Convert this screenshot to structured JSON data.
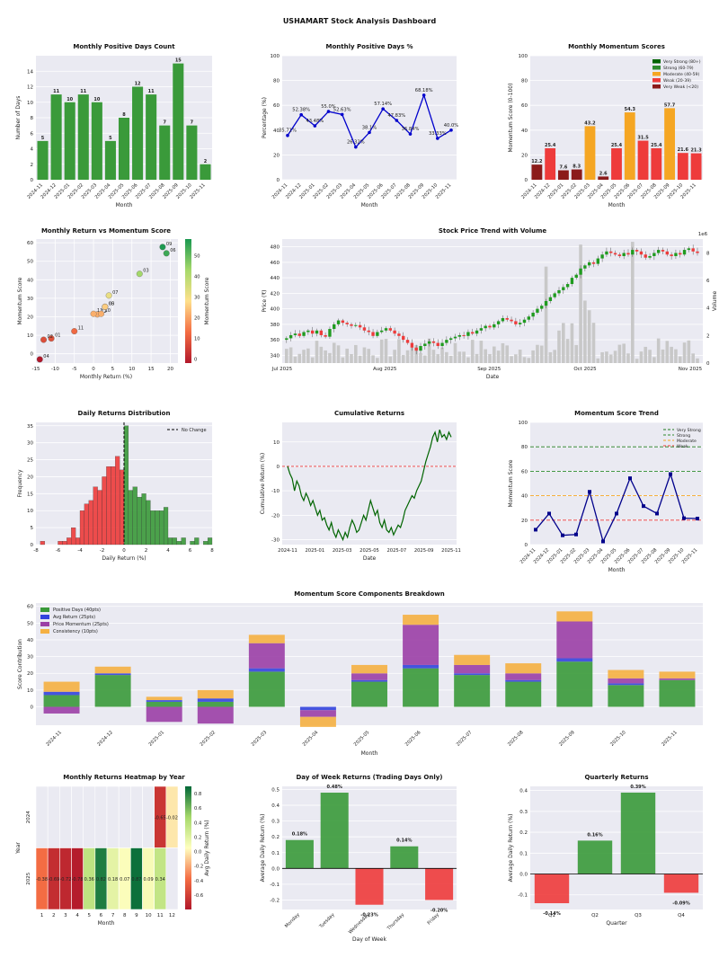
{
  "dashboard_title": "USHAMART Stock Analysis Dashboard",
  "colors": {
    "green": "#3a9a3a",
    "red": "#ee3b3b",
    "orange": "#f5a623",
    "darkred": "#8b1a1a",
    "navy": "#00008b",
    "blue": "#0000cc",
    "purple": "#9b3fa6",
    "consistency": "#f5b041",
    "avgret": "#3344dd",
    "panel": "#eaeaf2"
  },
  "chart_data": [
    {
      "id": "positive_days",
      "type": "bar",
      "title": "Monthly Positive Days Count",
      "xlabel": "Month",
      "ylabel": "Number of Days",
      "ylim": [
        0,
        16
      ],
      "yticks": [
        0,
        2,
        4,
        6,
        8,
        10,
        12,
        14
      ],
      "categories": [
        "2024-11",
        "2024-12",
        "2025-01",
        "2025-02",
        "2025-03",
        "2025-04",
        "2025-05",
        "2025-06",
        "2025-07",
        "2025-08",
        "2025-09",
        "2025-10",
        "2025-11"
      ],
      "values": [
        5,
        11,
        10,
        11,
        10,
        5,
        8,
        12,
        11,
        7,
        15,
        7,
        2
      ],
      "data_labels": [
        "5",
        "11",
        "10",
        "11",
        "10",
        "5",
        "8",
        "12",
        "11",
        "7",
        "15",
        "7",
        "2"
      ]
    },
    {
      "id": "positive_pct",
      "type": "line",
      "title": "Monthly Positive Days %",
      "xlabel": "Month",
      "ylabel": "Percentage (%)",
      "ylim": [
        0,
        100
      ],
      "yticks": [
        0,
        20,
        40,
        60,
        80,
        100
      ],
      "categories": [
        "2024-11",
        "2024-12",
        "2025-01",
        "2025-02",
        "2025-03",
        "2025-04",
        "2025-05",
        "2025-06",
        "2025-07",
        "2025-08",
        "2025-09",
        "2025-10",
        "2025-11"
      ],
      "values": [
        35.71,
        52.38,
        43.48,
        55.0,
        52.63,
        26.32,
        38.1,
        57.14,
        47.83,
        36.84,
        68.18,
        33.33,
        40.0
      ],
      "data_labels": [
        "35.71%",
        "52.38%",
        "43.48%",
        "55.0%",
        "52.63%",
        "26.32%",
        "38.1%",
        "57.14%",
        "47.83%",
        "36.84%",
        "68.18%",
        "33.33%",
        "40.0%"
      ]
    },
    {
      "id": "momentum_scores",
      "type": "bar",
      "title": "Monthly Momentum Scores",
      "xlabel": "Month",
      "ylabel": "Momentum Score (0-100)",
      "ylim": [
        0,
        100
      ],
      "yticks": [
        0,
        20,
        40,
        60,
        80,
        100
      ],
      "categories": [
        "2024-11",
        "2024-12",
        "2025-01",
        "2025-02",
        "2025-03",
        "2025-04",
        "2025-05",
        "2025-06",
        "2025-07",
        "2025-08",
        "2025-09",
        "2025-10",
        "2025-11"
      ],
      "values": [
        12.2,
        25.4,
        7.6,
        8.3,
        43.2,
        2.6,
        25.4,
        54.3,
        31.5,
        25.4,
        57.7,
        21.6,
        21.3
      ],
      "data_labels": [
        "12.2",
        "25.4",
        "7.6",
        "8.3",
        "43.2",
        "2.6",
        "25.4",
        "54.3",
        "31.5",
        "25.4",
        "57.7",
        "21.6",
        "21.3"
      ],
      "legend": [
        "Very Strong (80+)",
        "Strong (60-79)",
        "Moderate (40-59)",
        "Weak (20-39)",
        "Very Weak (<20)"
      ]
    },
    {
      "id": "return_vs_momentum",
      "type": "scatter",
      "title": "Monthly Return vs Momentum Score",
      "xlabel": "Monthly Return (%)",
      "ylabel": "Momentum Score",
      "colorbar_label": "Momentum Score",
      "xlim": [
        -15,
        22
      ],
      "ylim": [
        -5,
        62
      ],
      "xticks": [
        -15,
        -10,
        -5,
        0,
        5,
        10,
        15,
        20
      ],
      "yticks": [
        0,
        10,
        20,
        30,
        40,
        50,
        60
      ],
      "cticks": [
        0,
        10,
        20,
        30,
        40,
        50
      ],
      "points": [
        {
          "label": "01",
          "x": -11,
          "y": 8.3
        },
        {
          "label": "02",
          "x": -13,
          "y": 7.6
        },
        {
          "label": "04",
          "x": -14,
          "y": -3
        },
        {
          "label": "11",
          "x": -5,
          "y": 12.2
        },
        {
          "label": "12",
          "x": 1,
          "y": 21.3
        },
        {
          "label": "11",
          "x": 0,
          "y": 21.6
        },
        {
          "label": "10",
          "x": 2,
          "y": 21.6
        },
        {
          "label": "08",
          "x": 3,
          "y": 25.4
        },
        {
          "label": "05",
          "x": 3,
          "y": 25.4
        },
        {
          "label": "07",
          "x": 4,
          "y": 31.5
        },
        {
          "label": "03",
          "x": 12,
          "y": 43.2
        },
        {
          "label": "09",
          "x": 18,
          "y": 57.7
        },
        {
          "label": "06",
          "x": 19,
          "y": 54.3
        }
      ]
    },
    {
      "id": "price_trend",
      "type": "candlestick",
      "title": "Stock Price Trend with Volume",
      "xlabel": "Date",
      "ylabel": "Price (₹)",
      "ylabel2": "Volume",
      "volume_scale_label": "1e6",
      "ylim": [
        330,
        490
      ],
      "yticks": [
        340,
        360,
        380,
        400,
        420,
        440,
        460,
        480
      ],
      "y2lim": [
        0,
        9
      ],
      "y2ticks": [
        0,
        2,
        4,
        6,
        8
      ],
      "xticks": [
        "Jul 2025",
        "Aug 2025",
        "Sep 2025",
        "Oct 2025",
        "Nov 2025"
      ],
      "close": [
        362,
        366,
        368,
        365,
        370,
        372,
        368,
        372,
        366,
        364,
        374,
        380,
        385,
        382,
        380,
        378,
        379,
        376,
        372,
        370,
        365,
        370,
        372,
        375,
        372,
        368,
        365,
        360,
        356,
        350,
        346,
        352,
        355,
        358,
        356,
        352,
        356,
        360,
        362,
        364,
        366,
        365,
        370,
        368,
        372,
        375,
        378,
        376,
        380,
        384,
        388,
        386,
        384,
        380,
        382,
        386,
        390,
        395,
        400,
        404,
        410,
        415,
        420,
        424,
        428,
        432,
        440,
        444,
        452,
        456,
        460,
        458,
        465,
        470,
        474,
        472,
        470,
        468,
        472,
        470,
        476,
        474,
        470,
        466,
        468,
        472,
        476,
        474,
        470,
        468,
        472,
        470,
        476,
        478,
        474,
        472
      ]
    },
    {
      "id": "daily_returns",
      "type": "histogram",
      "title": "Daily Returns Distribution",
      "xlabel": "Daily Return (%)",
      "ylabel": "Frequency",
      "xlim": [
        -8,
        8
      ],
      "ylim": [
        0,
        36
      ],
      "xticks": [
        -8,
        -6,
        -4,
        -2,
        0,
        2,
        4,
        6,
        8
      ],
      "yticks": [
        0,
        5,
        10,
        15,
        20,
        25,
        30,
        35
      ],
      "legend": [
        "No Change"
      ],
      "bin_width": 0.4,
      "bins": [
        {
          "x": -7.6,
          "f": 1
        },
        {
          "x": -6.0,
          "f": 1
        },
        {
          "x": -5.6,
          "f": 1
        },
        {
          "x": -5.2,
          "f": 2
        },
        {
          "x": -4.8,
          "f": 5
        },
        {
          "x": -4.4,
          "f": 2
        },
        {
          "x": -4.0,
          "f": 10
        },
        {
          "x": -3.6,
          "f": 12
        },
        {
          "x": -3.2,
          "f": 13
        },
        {
          "x": -2.8,
          "f": 17
        },
        {
          "x": -2.4,
          "f": 16
        },
        {
          "x": -2.0,
          "f": 20
        },
        {
          "x": -1.6,
          "f": 23
        },
        {
          "x": -1.2,
          "f": 23
        },
        {
          "x": -0.8,
          "f": 26
        },
        {
          "x": -0.4,
          "f": 22
        },
        {
          "x": 0.0,
          "f": 35
        },
        {
          "x": 0.4,
          "f": 16
        },
        {
          "x": 0.8,
          "f": 17
        },
        {
          "x": 1.2,
          "f": 14
        },
        {
          "x": 1.6,
          "f": 15
        },
        {
          "x": 2.0,
          "f": 13
        },
        {
          "x": 2.4,
          "f": 10
        },
        {
          "x": 2.8,
          "f": 10
        },
        {
          "x": 3.2,
          "f": 10
        },
        {
          "x": 3.6,
          "f": 11
        },
        {
          "x": 4.0,
          "f": 2
        },
        {
          "x": 4.4,
          "f": 2
        },
        {
          "x": 4.8,
          "f": 1
        },
        {
          "x": 5.2,
          "f": 2
        },
        {
          "x": 5.6,
          "f": 0
        },
        {
          "x": 6.0,
          "f": 1
        },
        {
          "x": 6.4,
          "f": 2
        },
        {
          "x": 6.8,
          "f": 0
        },
        {
          "x": 7.2,
          "f": 1
        },
        {
          "x": 7.6,
          "f": 2
        }
      ]
    },
    {
      "id": "cumulative",
      "type": "line",
      "title": "Cumulative Returns",
      "xlabel": "Date",
      "ylabel": "Cumulative Return (%)",
      "ylim": [
        -32,
        18
      ],
      "yticks": [
        -30,
        -20,
        -10,
        0,
        10
      ],
      "xticks": [
        "2024-11",
        "2025-01",
        "2025-03",
        "2025-05",
        "2025-07",
        "2025-09",
        "2025-11"
      ],
      "values": [
        0,
        -3,
        -5,
        -10,
        -6,
        -8,
        -12,
        -14,
        -11,
        -13,
        -16,
        -14,
        -17,
        -20,
        -18,
        -22,
        -21,
        -24,
        -26,
        -23,
        -27,
        -29,
        -26,
        -28,
        -30,
        -27,
        -29,
        -25,
        -22,
        -24,
        -27,
        -26,
        -23,
        -20,
        -22,
        -18,
        -14,
        -17,
        -20,
        -18,
        -23,
        -25,
        -22,
        -26,
        -27,
        -25,
        -28,
        -26,
        -24,
        -25,
        -22,
        -18,
        -16,
        -14,
        -12,
        -13,
        -10,
        -8,
        -6,
        -2,
        2,
        5,
        8,
        12,
        14,
        10,
        15,
        12,
        13,
        11,
        14,
        12
      ]
    },
    {
      "id": "momentum_trend",
      "type": "line",
      "title": "Momentum Score Trend",
      "xlabel": "Month",
      "ylabel": "Momentum Score",
      "ylim": [
        0,
        100
      ],
      "yticks": [
        0,
        20,
        40,
        60,
        80,
        100
      ],
      "categories": [
        "2024-11",
        "2024-12",
        "2025-01",
        "2025-02",
        "2025-03",
        "2025-04",
        "2025-05",
        "2025-06",
        "2025-07",
        "2025-08",
        "2025-09",
        "2025-10",
        "2025-11"
      ],
      "values": [
        12.2,
        25.4,
        7.6,
        8.3,
        43.2,
        2.6,
        25.4,
        54.3,
        31.5,
        25.4,
        57.7,
        21.6,
        21.3
      ],
      "thresholds": [
        {
          "name": "Very Strong",
          "value": 80
        },
        {
          "name": "Strong",
          "value": 60
        },
        {
          "name": "Moderate",
          "value": 40
        },
        {
          "name": "Weak",
          "value": 20
        }
      ]
    },
    {
      "id": "components",
      "type": "stacked_bar",
      "title": "Momentum Score Components Breakdown",
      "xlabel": "Month",
      "ylabel": "Score Contribution",
      "ylim": [
        -11,
        62
      ],
      "yticks": [
        0,
        10,
        20,
        30,
        40,
        50,
        60
      ],
      "categories": [
        "2024-11",
        "2024-12",
        "2025-01",
        "2025-02",
        "2025-03",
        "2025-04",
        "2025-05",
        "2025-06",
        "2025-07",
        "2025-08",
        "2025-09",
        "2025-10",
        "2025-11"
      ],
      "series": [
        {
          "name": "Positive Days (40pts)",
          "values": [
            7,
            19,
            3,
            3,
            21,
            0,
            15,
            23,
            19,
            15,
            27,
            13,
            16
          ]
        },
        {
          "name": "Avg Return (25pts)",
          "values": [
            2,
            1,
            1,
            2,
            2,
            -2,
            1,
            2,
            1,
            1,
            2,
            1,
            0
          ]
        },
        {
          "name": "Price Momentum (25pts)",
          "values": [
            -4,
            0,
            -9,
            -10,
            15,
            -4,
            4,
            24,
            5,
            4,
            22,
            3,
            1
          ]
        },
        {
          "name": "Consistency (10pts)",
          "values": [
            6,
            4,
            2,
            5,
            5,
            -6,
            5,
            6,
            6,
            6,
            6,
            5,
            4
          ]
        }
      ]
    },
    {
      "id": "heatmap",
      "type": "heatmap",
      "title": "Monthly Returns Heatmap by Year",
      "xlabel": "Month",
      "ylabel": "Year",
      "colorbar_label": "Avg Daily Return (%)",
      "rows": [
        "2024",
        "2025"
      ],
      "cols": [
        "1",
        "2",
        "3",
        "4",
        "5",
        "6",
        "7",
        "8",
        "9",
        "10",
        "11",
        "12"
      ],
      "crange": [
        -0.8,
        0.9
      ],
      "cticks": [
        "-0.6",
        "-0.4",
        "-0.2",
        "0.0",
        "0.2",
        "0.4",
        "0.6",
        "0.8"
      ],
      "values": [
        [
          null,
          null,
          null,
          null,
          null,
          null,
          null,
          null,
          null,
          null,
          -0.65,
          -0.02
        ],
        [
          -0.38,
          -0.69,
          -0.72,
          -0.78,
          0.36,
          0.82,
          0.18,
          0.07,
          0.87,
          0.09,
          0.34,
          null
        ]
      ],
      "labels": [
        [
          "",
          "",
          "",
          "",
          "",
          "",
          "",
          "",
          "",
          "",
          "-0.65",
          "-0.02"
        ],
        [
          "-0.38",
          "-0.69",
          "-0.72",
          "-0.78",
          "0.36",
          "0.82",
          "0.18",
          "0.07",
          "0.87",
          "0.09",
          "0.34",
          ""
        ]
      ]
    },
    {
      "id": "weekday",
      "type": "bar",
      "title": "Day of Week Returns (Trading Days Only)",
      "xlabel": "Day of Week",
      "ylabel": "Average Daily Return (%)",
      "ylim": [
        -0.26,
        0.52
      ],
      "yticks": [
        -0.2,
        -0.1,
        0.0,
        0.1,
        0.2,
        0.3,
        0.4,
        0.5
      ],
      "categories": [
        "Monday",
        "Tuesday",
        "Wednesday",
        "Thursday",
        "Friday"
      ],
      "values": [
        0.18,
        0.48,
        -0.23,
        0.14,
        -0.2
      ],
      "data_labels": [
        "0.18%",
        "0.48%",
        "-0.23%",
        "0.14%",
        "-0.20%"
      ]
    },
    {
      "id": "quarterly",
      "type": "bar",
      "title": "Quarterly Returns",
      "xlabel": "Quarter",
      "ylabel": "Average Daily Return (%)",
      "ylim": [
        -0.17,
        0.42
      ],
      "yticks": [
        -0.1,
        0.0,
        0.1,
        0.2,
        0.3,
        0.4
      ],
      "categories": [
        "Q1",
        "Q2",
        "Q3",
        "Q4"
      ],
      "values": [
        -0.14,
        0.16,
        0.39,
        -0.09
      ],
      "data_labels": [
        "-0.14%",
        "0.16%",
        "0.39%",
        "-0.09%"
      ]
    }
  ]
}
